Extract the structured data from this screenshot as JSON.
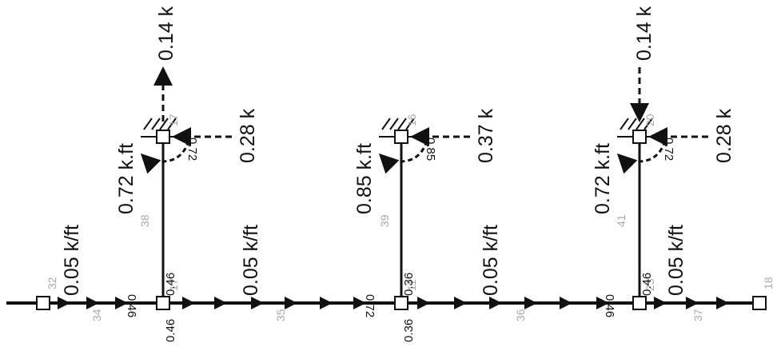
{
  "loads": {
    "udl_1": "0.05 k/ft",
    "udl_2": "0.05 k/ft",
    "udl_3": "0.05 k/ft",
    "udl_4": "0.05 k/ft",
    "moment_1": "0.72 k.ft",
    "moment_2": "0.85 k.ft",
    "moment_3": "0.72 k.ft",
    "hforce_1": "0.28 k",
    "hforce_2": "0.37 k",
    "hforce_3": "0.28 k",
    "vforce_1": "0.14 k",
    "vforce_3": "0.14 k"
  },
  "results": {
    "top_1": "0.72",
    "top_2": "0.85",
    "top_3": "0.72",
    "col1_base": "0.46",
    "col2_base": "0.36",
    "col3_base": "0.46",
    "beam_left_1": "0.46",
    "beam_right_2": "0.72",
    "beam_left_3": "0.46",
    "below_1": "0.46",
    "below_2": "0.36"
  },
  "ids": {
    "m34": "34",
    "m35": "35",
    "m36": "36",
    "m37": "37",
    "m38": "38",
    "m39": "39",
    "m41": "41",
    "n_left": "32",
    "n_col1_base": "17",
    "n_col2_base": "11",
    "n_col3_base": "23",
    "n_right": "18",
    "n_top1": "17",
    "n_top2": "16",
    "n_top3": "20"
  }
}
